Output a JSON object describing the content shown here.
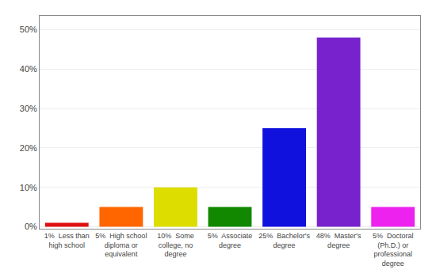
{
  "chart_data": {
    "type": "bar",
    "categories": [
      "1%  Less than\nhigh school",
      "5%  High school\ndiploma or\nequivalent",
      "10%  Some\ncollege, no\ndegree",
      "5%  Associate\ndegree",
      "25%  Bachelor's\ndegree",
      "48%  Master's\ndegree",
      "5%  Doctoral\n(Ph.D.) or\nprofessional\ndegree"
    ],
    "values": [
      1,
      5,
      10,
      5,
      25,
      48,
      5
    ],
    "colors": [
      "#dd1111",
      "#ff6600",
      "#dddd00",
      "#118800",
      "#1111dd",
      "#7722cc",
      "#ee22ee"
    ],
    "ylim": [
      -0.5,
      53.5
    ],
    "yticks": [
      {
        "value": 0,
        "label": "0%"
      },
      {
        "value": 10,
        "label": "10%"
      },
      {
        "value": 20,
        "label": "20%"
      },
      {
        "value": 30,
        "label": "30%"
      },
      {
        "value": 40,
        "label": "40%"
      },
      {
        "value": 50,
        "label": "50%"
      }
    ],
    "grid": true
  }
}
